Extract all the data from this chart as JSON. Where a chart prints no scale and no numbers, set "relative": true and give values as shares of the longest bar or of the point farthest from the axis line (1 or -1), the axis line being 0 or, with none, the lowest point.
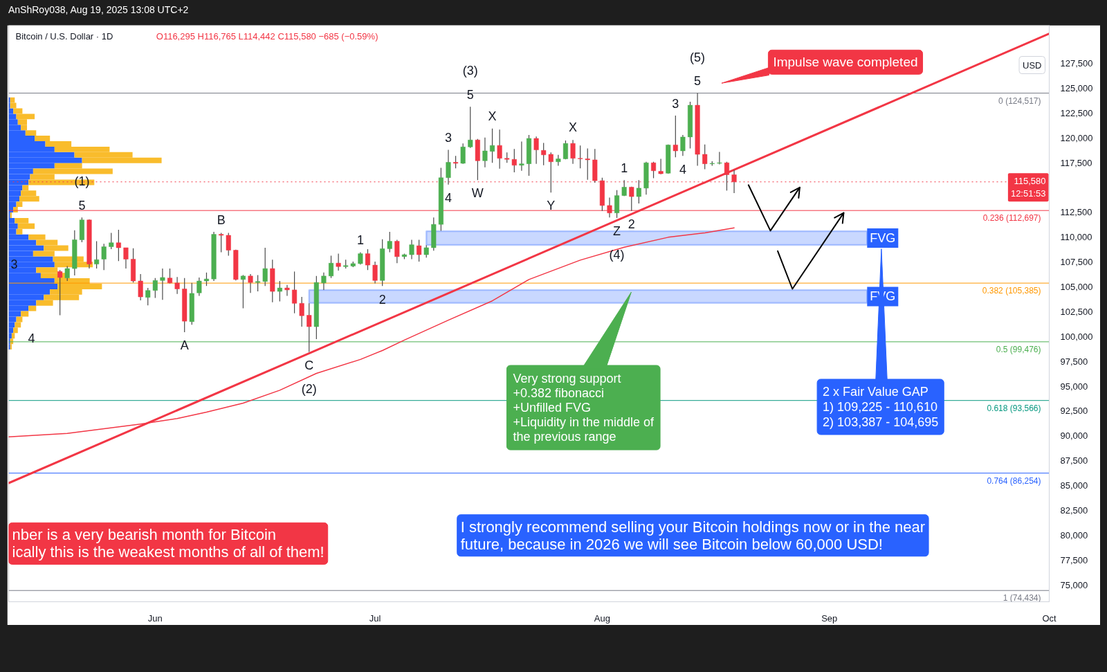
{
  "chart_data": [
    {
      "type": "candlestick",
      "title": "Bitcoin / U.S. Dollar · 1D",
      "subtitle": "O116,295 H116,765 L114,442 C115,580 −685 (−0.59%)",
      "ylabel": "USD",
      "x": [
        "2025-05-19",
        "2025-05-20",
        "2025-05-21",
        "2025-05-22",
        "2025-05-23",
        "2025-05-24",
        "2025-05-25",
        "2025-05-26",
        "2025-05-27",
        "2025-05-28",
        "2025-05-29",
        "2025-05-30",
        "2025-05-31",
        "2025-06-01",
        "2025-06-02",
        "2025-06-03",
        "2025-06-04",
        "2025-06-05",
        "2025-06-06",
        "2025-06-07",
        "2025-06-08",
        "2025-06-09",
        "2025-06-10",
        "2025-06-11",
        "2025-06-12",
        "2025-06-13",
        "2025-06-14",
        "2025-06-15",
        "2025-06-16",
        "2025-06-17",
        "2025-06-18",
        "2025-06-19",
        "2025-06-20",
        "2025-06-21",
        "2025-06-22",
        "2025-06-23",
        "2025-06-24",
        "2025-06-25",
        "2025-06-26",
        "2025-06-27",
        "2025-06-28",
        "2025-06-29",
        "2025-06-30",
        "2025-07-01",
        "2025-07-02",
        "2025-07-03",
        "2025-07-04",
        "2025-07-05",
        "2025-07-06",
        "2025-07-07",
        "2025-07-08",
        "2025-07-09",
        "2025-07-10",
        "2025-07-11",
        "2025-07-12",
        "2025-07-13",
        "2025-07-14",
        "2025-07-15",
        "2025-07-16",
        "2025-07-17",
        "2025-07-18",
        "2025-07-19",
        "2025-07-20",
        "2025-07-21",
        "2025-07-22",
        "2025-07-23",
        "2025-07-24",
        "2025-07-25",
        "2025-07-26",
        "2025-07-27",
        "2025-07-28",
        "2025-07-29",
        "2025-07-30",
        "2025-07-31",
        "2025-08-01",
        "2025-08-02",
        "2025-08-03",
        "2025-08-04",
        "2025-08-05",
        "2025-08-06",
        "2025-08-07",
        "2025-08-08",
        "2025-08-09",
        "2025-08-10",
        "2025-08-11",
        "2025-08-12",
        "2025-08-13",
        "2025-08-14",
        "2025-08-15",
        "2025-08-16",
        "2025-08-17",
        "2025-08-18",
        "2025-08-19"
      ],
      "ohlc": [
        [
          106550,
          106700,
          102150,
          105950
        ],
        [
          105900,
          107100,
          105600,
          106850
        ],
        [
          106850,
          110700,
          106150,
          109750
        ],
        [
          109750,
          112000,
          109500,
          111750
        ],
        [
          111750,
          111800,
          106850,
          107300
        ],
        [
          107300,
          109600,
          106850,
          107750
        ],
        [
          107800,
          109350,
          106700,
          109050
        ],
        [
          109050,
          110450,
          108800,
          109450
        ],
        [
          109450,
          110750,
          107600,
          108950
        ],
        [
          108950,
          108950,
          106850,
          107800
        ],
        [
          107800,
          108900,
          105450,
          105600
        ],
        [
          105600,
          106300,
          103650,
          104000
        ],
        [
          103950,
          104900,
          103150,
          104650
        ],
        [
          104650,
          105900,
          103900,
          105650
        ],
        [
          105650,
          106850,
          103700,
          105950
        ],
        [
          105900,
          106850,
          105350,
          105400
        ],
        [
          105400,
          106000,
          104300,
          104800
        ],
        [
          104800,
          105900,
          100450,
          101550
        ],
        [
          101500,
          105400,
          101200,
          104350
        ],
        [
          104400,
          105950,
          104100,
          105600
        ],
        [
          105600,
          106450,
          105100,
          105800
        ],
        [
          105800,
          110550,
          105600,
          110300
        ],
        [
          110300,
          110450,
          108500,
          110200
        ],
        [
          110200,
          110450,
          108150,
          108700
        ],
        [
          108700,
          108750,
          105650,
          105750
        ],
        [
          105750,
          106200,
          102850,
          106100
        ],
        [
          106100,
          106300,
          104400,
          105450
        ],
        [
          105450,
          106200,
          104550,
          105550
        ],
        [
          105550,
          108950,
          105100,
          106850
        ],
        [
          106850,
          107750,
          103450,
          104550
        ],
        [
          104550,
          105600,
          103550,
          104900
        ],
        [
          104900,
          105200,
          104100,
          104700
        ],
        [
          104700,
          106550,
          102350,
          103350
        ],
        [
          103350,
          104000,
          101000,
          102100
        ],
        [
          102150,
          103350,
          98450,
          101000
        ],
        [
          101000,
          106100,
          99750,
          105450
        ],
        [
          105400,
          106450,
          104700,
          106100
        ],
        [
          106100,
          108150,
          105900,
          107400
        ],
        [
          107400,
          108350,
          106650,
          107050
        ],
        [
          107050,
          107750,
          106850,
          107150
        ],
        [
          107100,
          107550,
          107000,
          107350
        ],
        [
          107350,
          108500,
          107250,
          108350
        ],
        [
          108350,
          108800,
          106700,
          107200
        ],
        [
          107200,
          107550,
          105350,
          105650
        ],
        [
          105650,
          109800,
          105100,
          108850
        ],
        [
          108850,
          110550,
          108500,
          109600
        ],
        [
          109600,
          109750,
          107400,
          108050
        ],
        [
          108050,
          108350,
          107800,
          108250
        ],
        [
          108250,
          109750,
          107800,
          109250
        ],
        [
          109150,
          109750,
          107550,
          108250
        ],
        [
          108250,
          109200,
          107950,
          108950
        ],
        [
          108950,
          112000,
          108650,
          111300
        ],
        [
          111300,
          117000,
          110650,
          116000
        ],
        [
          116000,
          118800,
          115300,
          117550
        ],
        [
          117550,
          118200,
          116950,
          117450
        ],
        [
          117450,
          119450,
          117400,
          119100
        ],
        [
          119100,
          123150,
          119000,
          119800
        ],
        [
          119800,
          119900,
          115750,
          117700
        ],
        [
          117700,
          120050,
          117050,
          118700
        ],
        [
          118650,
          120950,
          117500,
          119250
        ],
        [
          119250,
          120850,
          116900,
          117950
        ],
        [
          117950,
          118550,
          117500,
          117850
        ],
        [
          117850,
          118900,
          116550,
          117250
        ],
        [
          117250,
          119650,
          116700,
          117400
        ],
        [
          117400,
          120300,
          116200,
          119950
        ],
        [
          119950,
          120150,
          117400,
          118800
        ],
        [
          118750,
          119500,
          117250,
          118300
        ],
        [
          118350,
          118550,
          114500,
          117600
        ],
        [
          117600,
          118300,
          117200,
          117900
        ],
        [
          117900,
          119750,
          117850,
          119450
        ],
        [
          119450,
          119800,
          117400,
          117950
        ],
        [
          117950,
          119250,
          116950,
          117900
        ],
        [
          117900,
          118950,
          115800,
          117800
        ],
        [
          117800,
          118900,
          115500,
          115700
        ],
        [
          115700,
          116000,
          112650,
          113200
        ],
        [
          113200,
          114000,
          112000,
          112450
        ],
        [
          112450,
          114750,
          111950,
          114200
        ],
        [
          114200,
          115750,
          114150,
          115050
        ],
        [
          115050,
          115100,
          112650,
          114100
        ],
        [
          114100,
          115750,
          113400,
          114950
        ],
        [
          114950,
          117600,
          114300,
          117500
        ],
        [
          117500,
          117600,
          115950,
          116700
        ],
        [
          116650,
          117900,
          116350,
          116400
        ],
        [
          116450,
          119350,
          116400,
          119300
        ],
        [
          119300,
          122250,
          118050,
          118700
        ],
        [
          118700,
          120300,
          118200,
          120100
        ],
        [
          120100,
          123650,
          118950,
          123300
        ],
        [
          123300,
          124517,
          117200,
          118350
        ],
        [
          118350,
          119350,
          116850,
          117400
        ],
        [
          117400,
          117650,
          117200,
          117450
        ],
        [
          117450,
          118600,
          117350,
          117500
        ],
        [
          117500,
          117600,
          114700,
          116300
        ],
        [
          116295,
          116765,
          114442,
          115580
        ]
      ],
      "colors": [
        "#f23645",
        "#4caf50",
        "#4caf50",
        "#4caf50",
        "#f23645",
        "#4caf50",
        "#4caf50",
        "#4caf50",
        "#f23645",
        "#f23645",
        "#f23645",
        "#f23645",
        "#4caf50",
        "#4caf50",
        "#4caf50",
        "#f23645",
        "#f23645",
        "#f23645",
        "#4caf50",
        "#4caf50",
        "#4caf50",
        "#4caf50",
        "#f23645",
        "#f23645",
        "#f23645",
        "#4caf50",
        "#f23645",
        "#4caf50",
        "#4caf50",
        "#f23645",
        "#4caf50",
        "#f23645",
        "#f23645",
        "#f23645",
        "#f23645",
        "#4caf50",
        "#4caf50",
        "#4caf50",
        "#f23645",
        "#4caf50",
        "#4caf50",
        "#4caf50",
        "#f23645",
        "#f23645",
        "#4caf50",
        "#4caf50",
        "#f23645",
        "#4caf50",
        "#4caf50",
        "#f23645",
        "#4caf50",
        "#4caf50",
        "#4caf50",
        "#4caf50",
        "#f23645",
        "#4caf50",
        "#4caf50",
        "#f23645",
        "#4caf50",
        "#4caf50",
        "#f23645",
        "#f23645",
        "#f23645",
        "#4caf50",
        "#4caf50",
        "#f23645",
        "#f23645",
        "#f23645",
        "#4caf50",
        "#4caf50",
        "#f23645",
        "#f23645",
        "#f23645",
        "#f23645",
        "#f23645",
        "#f23645",
        "#4caf50",
        "#4caf50",
        "#f23645",
        "#4caf50",
        "#4caf50",
        "#f23645",
        "#f23645",
        "#4caf50",
        "#f23645",
        "#4caf50",
        "#4caf50",
        "#f23645",
        "#f23645",
        "#4caf50",
        "#4caf50",
        "#f23645",
        "#f23645"
      ],
      "series": [
        {
          "type": "line",
          "color": "#f23645",
          "x": [
            "2025-05-12",
            "2025-05-20",
            "2025-05-30",
            "2025-06-04",
            "2025-06-08",
            "2025-06-13",
            "2025-06-18",
            "2025-06-23",
            "2025-06-29",
            "2025-07-02",
            "2025-07-05",
            "2025-07-11",
            "2025-07-17",
            "2025-07-22",
            "2025-07-29",
            "2025-08-04",
            "2025-08-10",
            "2025-08-15",
            "2025-08-19"
          ],
          "values": [
            89900,
            90250,
            91200,
            91750,
            92400,
            93300,
            94600,
            96300,
            97700,
            98600,
            99650,
            101650,
            103600,
            105750,
            107700,
            109000,
            110000,
            110450,
            110950
          ]
        },
        {
          "type": "line",
          "color": "#f23645",
          "x": [
            "2025-05-12",
            "2025-10-01"
          ],
          "values": [
            85250,
            130500
          ]
        }
      ],
      "xlim": [
        "2025-05-12",
        "2025-10-01"
      ],
      "ylim": [
        73300,
        131350
      ],
      "xticks": [
        {
          "value": "2025-06-01",
          "label": "Jun"
        },
        {
          "value": "2025-07-01",
          "label": "Jul"
        },
        {
          "value": "2025-08-01",
          "label": "Aug"
        },
        {
          "value": "2025-09-01",
          "label": "Sep"
        },
        {
          "value": "2025-10-01",
          "label": "Oct"
        }
      ],
      "yticks": [
        {
          "value": 75000,
          "label": "75,000"
        },
        {
          "value": 77500,
          "label": "77,500"
        },
        {
          "value": 80000,
          "label": "80,000"
        },
        {
          "value": 82500,
          "label": "82,500"
        },
        {
          "value": 85000,
          "label": "85,000"
        },
        {
          "value": 87500,
          "label": "87,500"
        },
        {
          "value": 90000,
          "label": "90,000"
        },
        {
          "value": 92500,
          "label": "92,500"
        },
        {
          "value": 95000,
          "label": "95,000"
        },
        {
          "value": 97500,
          "label": "97,500"
        },
        {
          "value": 100000,
          "label": "100,000"
        },
        {
          "value": 102500,
          "label": "102,500"
        },
        {
          "value": 105000,
          "label": "105,000"
        },
        {
          "value": 107500,
          "label": "107,500"
        },
        {
          "value": 110000,
          "label": "110,000"
        },
        {
          "value": 112500,
          "label": "112,500"
        },
        {
          "value": 117500,
          "label": "117,500"
        },
        {
          "value": 120000,
          "label": "120,000"
        },
        {
          "value": 122500,
          "label": "122,500"
        },
        {
          "value": 125000,
          "label": "125,000"
        },
        {
          "value": 127500,
          "label": "127,500"
        }
      ],
      "ref_lines": [
        {
          "axis": "y",
          "value": 124517,
          "label": "0 (124,517)",
          "color": "#787b86"
        },
        {
          "axis": "y",
          "value": 112697,
          "label": "0.236 (112,697)",
          "color": "#f23645"
        },
        {
          "axis": "y",
          "value": 105385,
          "label": "0.382 (105,385)",
          "color": "#ff9800"
        },
        {
          "axis": "y",
          "value": 99476,
          "label": "0.5 (99,476)",
          "color": "#4caf50"
        },
        {
          "axis": "y",
          "value": 93566,
          "label": "0.618 (93,566)",
          "color": "#089981"
        },
        {
          "axis": "y",
          "value": 86254,
          "label": "0.764 (86,254)",
          "color": "#2962ff"
        },
        {
          "axis": "y",
          "value": 74434,
          "label": "1 (74,434)",
          "color": "#787b86"
        },
        {
          "axis": "y",
          "value": 115580,
          "label": "115,580\n12:51:53",
          "color": "#f23645",
          "line_style": "dotted"
        }
      ],
      "bands": [
        {
          "axis": "y",
          "from": 109225,
          "to": 110610,
          "label": "FVG",
          "color": "#2962ff"
        },
        {
          "axis": "y",
          "from": 103387,
          "to": 104695,
          "label": "FVG",
          "color": "#2962ff"
        }
      ],
      "annotations": [
        {
          "text": "5",
          "x": "2025-05-22",
          "y": 112000
        },
        {
          "text": "(1)",
          "x": "2025-05-22",
          "y": 112000
        },
        {
          "text": "B",
          "x": "2025-06-10",
          "y": 110450
        },
        {
          "text": "A",
          "x": "2025-06-05",
          "y": 100450
        },
        {
          "text": "C",
          "x": "2025-06-22",
          "y": 98450
        },
        {
          "text": "(2)",
          "x": "2025-06-22",
          "y": 98450
        },
        {
          "text": "1",
          "x": "2025-06-29",
          "y": 108500
        },
        {
          "text": "2",
          "x": "2025-07-02",
          "y": 105100
        },
        {
          "text": "3",
          "x": "2025-07-11",
          "y": 118800
        },
        {
          "text": "4",
          "x": "2025-07-11",
          "y": 115300
        },
        {
          "text": "5",
          "x": "2025-07-14",
          "y": 123150
        },
        {
          "text": "(3)",
          "x": "2025-07-14",
          "y": 123150
        },
        {
          "text": "W",
          "x": "2025-07-15",
          "y": 115750
        },
        {
          "text": "X",
          "x": "2025-07-17",
          "y": 120950
        },
        {
          "text": "Y",
          "x": "2025-07-25",
          "y": 114500
        },
        {
          "text": "X",
          "x": "2025-07-28",
          "y": 119800
        },
        {
          "text": "Z",
          "x": "2025-08-03",
          "y": 111950
        },
        {
          "text": "(4)",
          "x": "2025-08-03",
          "y": 111950
        },
        {
          "text": "1",
          "x": "2025-08-04",
          "y": 115750
        },
        {
          "text": "2",
          "x": "2025-08-05",
          "y": 112650
        },
        {
          "text": "3",
          "x": "2025-08-11",
          "y": 122250
        },
        {
          "text": "4",
          "x": "2025-08-12",
          "y": 118200
        },
        {
          "text": "5",
          "x": "2025-08-14",
          "y": 124517
        },
        {
          "text": "(5)",
          "x": "2025-08-14",
          "y": 124517
        },
        "AnShRoy038, Aug 19, 2025 13:08 UTC+2",
        "3",
        "4",
        "Impulse wave completed",
        "Very strong support\n+0.382 fibonacci\n+Unfilled FVG\n+Liquidity in the middle of\nthe previous range",
        "2 x Fair Value GAP\n1) 109,225 - 110,610\n2) 103,387 - 104,695",
        "nber is a very bearish month for Bitcoin\nically this is the weakest months of all of them!",
        "I strongly recommend selling your Bitcoin holdings now or in the near\nfuture, because in 2026 we will see Bitcoin below 60,000 USD!"
      ]
    },
    {
      "type": "bar",
      "orientation": "horizontal",
      "stacked": true,
      "relative": true,
      "categories": [
        null,
        null,
        null,
        null,
        null,
        null,
        null,
        null,
        null,
        null,
        null,
        null,
        null,
        null,
        null,
        null,
        null,
        null,
        null,
        null,
        null,
        null,
        null,
        null,
        null,
        null,
        null,
        null,
        null,
        null,
        null,
        null,
        null,
        null,
        null,
        null,
        null,
        null,
        null,
        null,
        null,
        null,
        null,
        null,
        null,
        null
      ],
      "series": [
        {
          "color": "#2962ff",
          "values": [
            0.01,
            0.01,
            0.03,
            0.05,
            0.06,
            0.08,
            0.11,
            0.17,
            0.24,
            0.3,
            0.43,
            0.48,
            0.3,
            0.16,
            0.14,
            0.13,
            0.09,
            0.08,
            0.07,
            0.05,
            0.03,
            0.01,
            0.04,
            0.06,
            0.05,
            0.13,
            0.18,
            0.23,
            0.16,
            0.29,
            0.3,
            0.18,
            0.21,
            0.3,
            0.32,
            0.27,
            0.23,
            0.18,
            0.13,
            0.08,
            0.05,
            0.04,
            0.03,
            0.02,
            0.01,
            0.01
          ]
        },
        {
          "color": "#f9bc2c",
          "values": [
            0.03,
            0.04,
            0.06,
            0.12,
            0.06,
            0.04,
            0.07,
            0.1,
            0.17,
            0.36,
            0.38,
            0.52,
            0.18,
            0.52,
            0.16,
            0.43,
            0.04,
            0.1,
            0.13,
            0.04,
            0.03,
            0.01,
            0.09,
            0.11,
            0.04,
            0.11,
            0.14,
            0.16,
            0.14,
            0.2,
            0.25,
            0.14,
            0.16,
            0.23,
            0.29,
            0.21,
            0.23,
            0.11,
            0.05,
            0.05,
            0.04,
            0.04,
            0.03,
            0.02,
            0.02,
            0.01
          ]
        }
      ]
    }
  ]
}
